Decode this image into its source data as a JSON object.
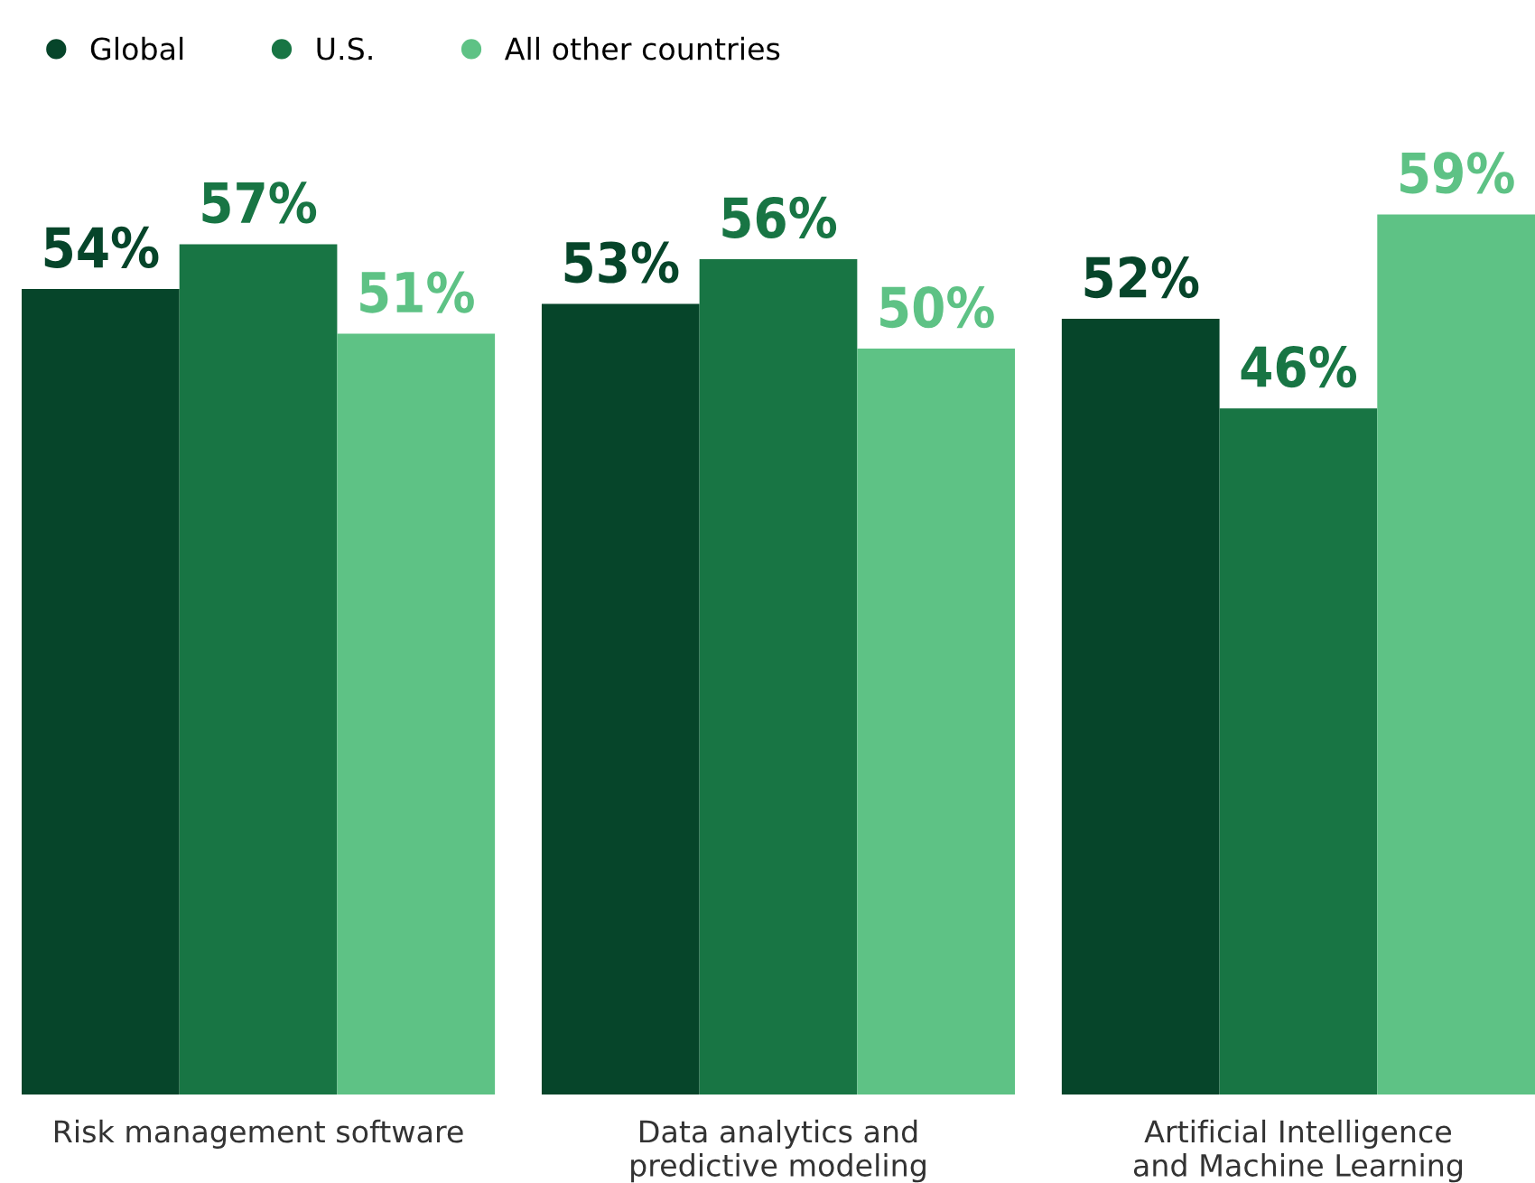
{
  "chart_data": {
    "type": "bar",
    "categories": [
      "Risk management software",
      "Data analytics and\npredictive modeling",
      "Artificial Intelligence\nand Machine Learning"
    ],
    "series": [
      {
        "name": "Global",
        "color": "#06452a",
        "values": [
          54,
          53,
          52
        ],
        "value_labels": [
          "54%",
          "53%",
          "52%"
        ]
      },
      {
        "name": "U.S.",
        "color": "#187544",
        "values": [
          57,
          56,
          46
        ],
        "value_labels": [
          "57%",
          "56%",
          "46%"
        ]
      },
      {
        "name": "All other countries",
        "color": "#5ec285",
        "values": [
          51,
          50,
          59
        ],
        "value_labels": [
          "51%",
          "50%",
          "59%"
        ]
      }
    ],
    "legend": "top left",
    "grid": false
  }
}
